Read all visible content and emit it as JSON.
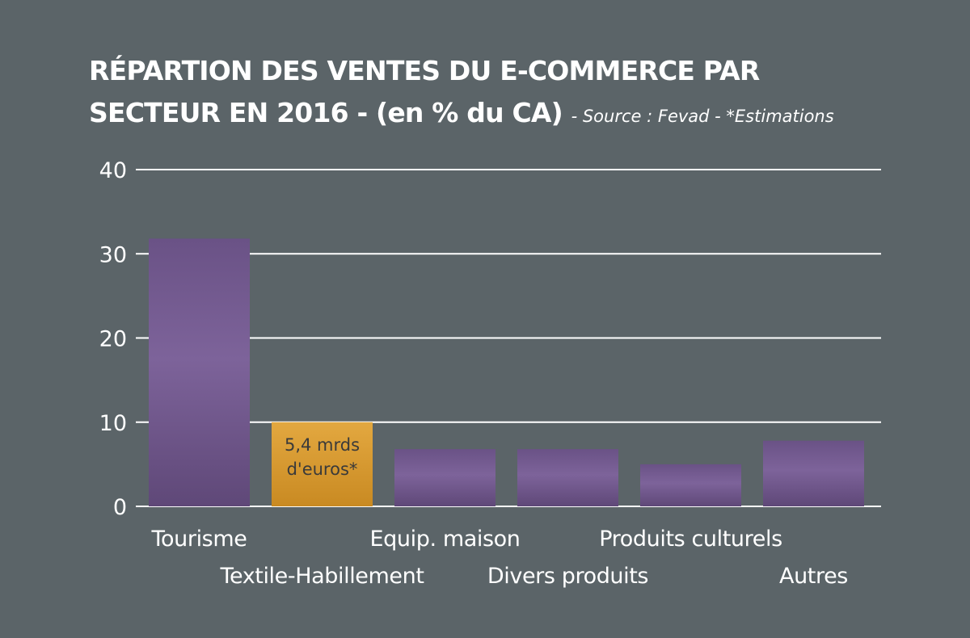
{
  "chart_data": {
    "type": "bar",
    "title": "RÉPARTION DES VENTES DU E-COMMERCE PAR",
    "title_line2": "SECTEUR EN 2016 - (en % du CA)",
    "subtitle": "- Source : Fevad - *Estimations",
    "categories": [
      "Tourisme",
      "Textile-Habillement",
      "Equip. maison",
      "Divers produits",
      "Produits culturels",
      "Autres"
    ],
    "values": [
      31.8,
      10,
      6.8,
      6.8,
      5,
      7.8
    ],
    "ylim": [
      0,
      40
    ],
    "yticks": [
      "0",
      "10",
      "20",
      "30",
      "40"
    ],
    "grid": true,
    "highlight_index": 1,
    "annotation": {
      "index": 1,
      "lines": [
        "5,4 mrds",
        "d'euros*"
      ]
    },
    "colors": {
      "background": "#5b6468",
      "bar": "#7a5f96",
      "bar_dark": "#5d4676",
      "highlight": "#e0a43c",
      "highlight_dark": "#c98a22",
      "grid": "#ffffff"
    }
  }
}
